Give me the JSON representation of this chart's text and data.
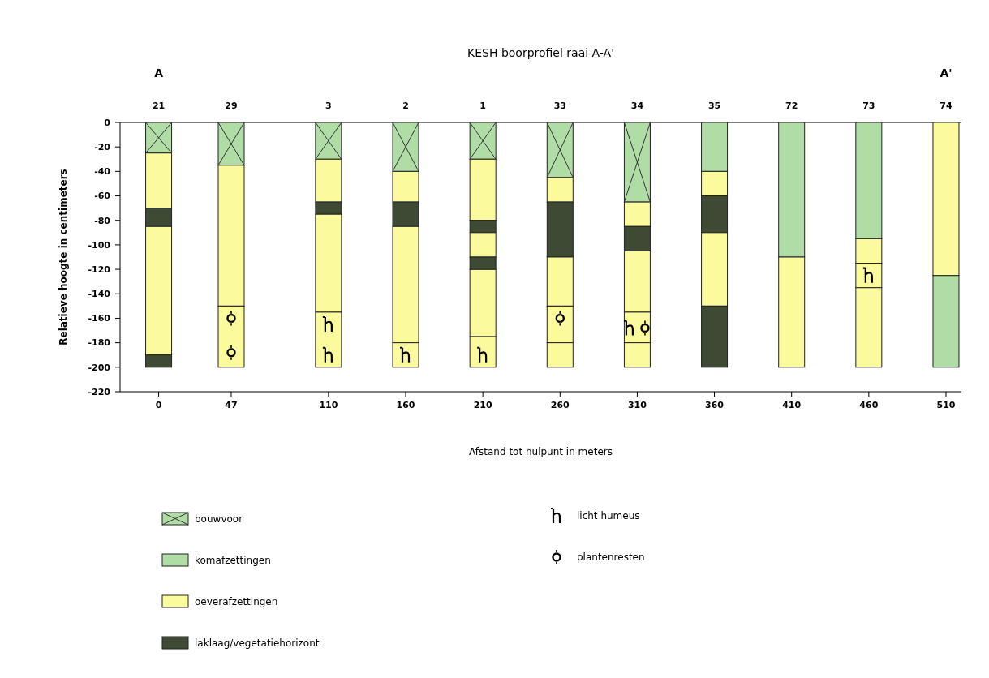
{
  "chart_data": {
    "type": "bar",
    "title": "KESH boorprofiel raai A-A'",
    "xlabel": "Afstand tot nulpunt in meters",
    "ylabel": "Relatieve hoogte in centimeters",
    "xlim": [
      -25,
      520
    ],
    "xticks": [
      0,
      47,
      110,
      160,
      210,
      260,
      310,
      360,
      410,
      460,
      510
    ],
    "ylim": [
      -220,
      0
    ],
    "yticks": [
      0,
      -20,
      -40,
      -60,
      -80,
      -100,
      -120,
      -140,
      -160,
      -180,
      -200,
      -220
    ],
    "grid": false,
    "legend": "bottom",
    "annotations": [
      {
        "text": "21",
        "x": 0,
        "y": 0
      },
      "A",
      {
        "text": "29",
        "x": 47,
        "y": 0
      },
      {
        "text": "3",
        "x": 110,
        "y": 0
      },
      {
        "text": "2",
        "x": 160,
        "y": 0
      },
      {
        "text": "1",
        "x": 210,
        "y": 0
      },
      {
        "text": "33",
        "x": 260,
        "y": 0
      },
      {
        "text": "34",
        "x": 310,
        "y": 0
      },
      {
        "text": "35",
        "x": 360,
        "y": 0
      },
      {
        "text": "72",
        "x": 410,
        "y": 0
      },
      {
        "text": "73",
        "x": 460,
        "y": 0
      },
      {
        "text": "74",
        "x": 510,
        "y": 0
      },
      "A'"
    ],
    "series": [
      {
        "name": "bouwvoor",
        "color": "#b0dca6",
        "marker": "cross",
        "x": [
          0,
          47,
          110,
          160,
          210,
          260,
          310
        ],
        "base": [
          0,
          0,
          0,
          0,
          0,
          0,
          0
        ],
        "values": [
          -25,
          -35,
          -30,
          -40,
          -30,
          -45,
          -65
        ]
      },
      {
        "name": "komafzettingen",
        "color": "#b0dca6",
        "x": [
          360,
          410,
          460,
          510
        ],
        "base": [
          0,
          0,
          0,
          -125
        ],
        "values": [
          -40,
          -110,
          -95,
          -75
        ]
      },
      {
        "name": "oeverafzettingen",
        "color": "#fbfa9c",
        "x": [
          0,
          47,
          110,
          160,
          210,
          260,
          310,
          360,
          410,
          460,
          510
        ],
        "base": [
          -25,
          -35,
          -30,
          -40,
          -30,
          -45,
          -65,
          -40,
          -110,
          -95,
          0
        ],
        "values": [
          -45,
          -115,
          -35,
          -25,
          -50,
          -20,
          -20,
          -20,
          -90,
          -20,
          -125
        ]
      },
      {
        "name": "laklaag/vegetatiehorizont",
        "color": "#3e4a34",
        "x": [
          0,
          110,
          160,
          210,
          260,
          310,
          360
        ],
        "base": [
          -70,
          -65,
          -65,
          -80,
          -65,
          -85,
          -60
        ],
        "values": [
          -15,
          -10,
          -20,
          -10,
          -45,
          -20,
          -30
        ]
      },
      {
        "color": "#fbfa9c",
        "x": [
          0,
          47,
          110,
          160,
          210,
          260,
          310,
          360,
          460
        ],
        "base": [
          -85,
          -150,
          -75,
          -85,
          -90,
          -110,
          -105,
          -90,
          -115
        ],
        "values": [
          -105,
          -50,
          -80,
          -95,
          -20,
          -40,
          -50,
          -60,
          -20
        ]
      },
      {
        "color": "#fbfa9c",
        "x": [
          110,
          160,
          210,
          260,
          310,
          460
        ],
        "base": [
          -155,
          -180,
          -120,
          -150,
          -155,
          -135
        ],
        "values": [
          -45,
          -20,
          -55,
          -30,
          -25,
          -65
        ]
      },
      {
        "color": "#fbfa9c",
        "x": [
          210,
          260,
          310
        ],
        "base": [
          -175,
          -180,
          -180
        ],
        "values": [
          -25,
          -20,
          -20
        ]
      },
      {
        "color": "#3e4a34",
        "x": [
          0,
          210,
          360
        ],
        "base": [
          -190,
          -110,
          -150
        ],
        "values": [
          -10,
          -10,
          -50
        ]
      },
      {
        "name": "licht humeus",
        "type": "scatter",
        "marker": "cross",
        "color": "#000000",
        "x": [
          110,
          160,
          210,
          305,
          460
        ],
        "values": [
          -165,
          -190,
          -190,
          -168,
          -125
        ]
      },
      {
        "type": "scatter",
        "marker": "cross",
        "color": "#000000",
        "x": [
          110
        ],
        "values": [
          -190
        ]
      },
      {
        "name": "plantenresten",
        "type": "scatter",
        "marker": "circle",
        "color": "#000000",
        "x": [
          47,
          260,
          315
        ],
        "values": [
          -160,
          -160,
          -168
        ]
      },
      {
        "type": "scatter",
        "marker": "circle",
        "color": "#000000",
        "x": [
          47
        ],
        "values": [
          -188
        ]
      }
    ]
  }
}
